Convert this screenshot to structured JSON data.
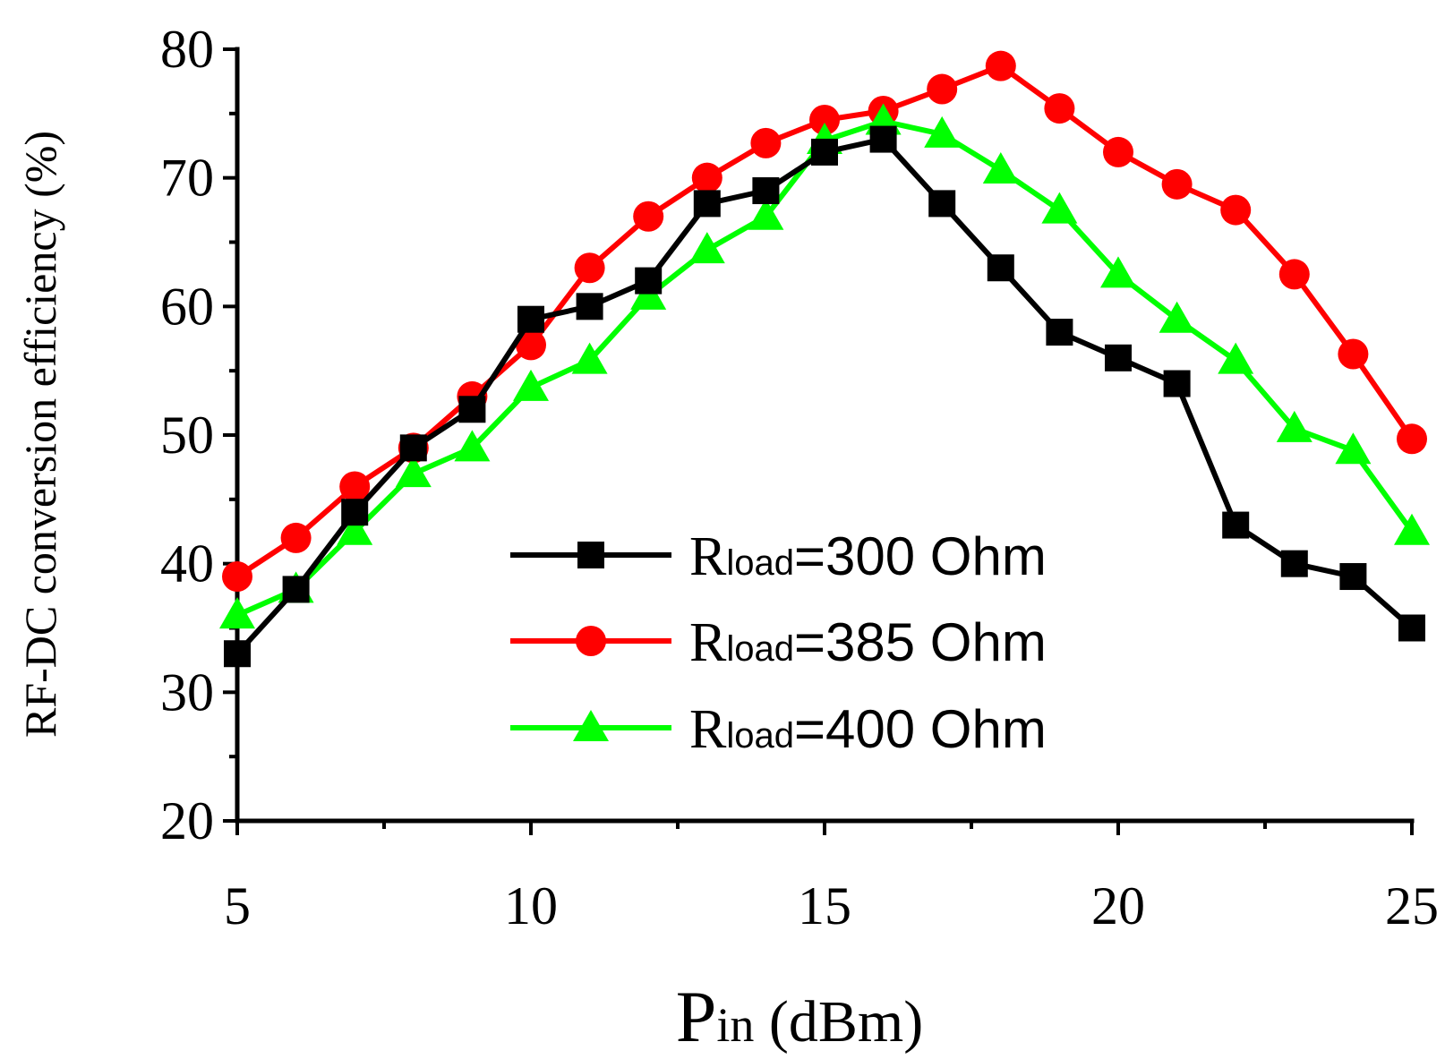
{
  "chart_data": {
    "type": "line",
    "title": "",
    "xlabel": {
      "main": "P",
      "sub": "in",
      "rest": " (dBm)"
    },
    "ylabel": "RF-DC conversion efficiency (%)",
    "xlim": [
      5,
      25
    ],
    "ylim": [
      20,
      80
    ],
    "xticks": [
      5,
      10,
      15,
      20,
      25
    ],
    "yticks": [
      20,
      30,
      40,
      50,
      60,
      70,
      80
    ],
    "grid": false,
    "legend_position": "center-bottom",
    "x": [
      5,
      6,
      7,
      8,
      9,
      10,
      11,
      12,
      13,
      14,
      15,
      16,
      17,
      18,
      19,
      20,
      21,
      22,
      23,
      24,
      25
    ],
    "series": [
      {
        "name": "Rload=300 Ohm",
        "label_main": "R",
        "label_sub": "load",
        "label_rest": "=300 Ohm",
        "color": "#000000",
        "marker": "square",
        "values": [
          33,
          38,
          44,
          49,
          52,
          59,
          60,
          62,
          68,
          69,
          72,
          73,
          68,
          63,
          58,
          56,
          54,
          43,
          40,
          39,
          35
        ]
      },
      {
        "name": "Rload=385 Ohm",
        "label_main": "R",
        "label_sub": "load",
        "label_rest": "=385 Ohm",
        "color": "#ff0000",
        "marker": "circle",
        "values": [
          39,
          42,
          46,
          49,
          53,
          57,
          63,
          67,
          70,
          72.7,
          74.5,
          75.2,
          76.9,
          78.7,
          75.4,
          72,
          69.5,
          67.5,
          62.5,
          56.3,
          49.7
        ]
      },
      {
        "name": "Rload=400 Ohm",
        "label_main": "R",
        "label_sub": "load",
        "label_rest": "=400 Ohm",
        "color": "#00ff00",
        "marker": "triangle",
        "values": [
          36,
          38,
          42.5,
          47,
          49,
          53.7,
          55.8,
          60.8,
          64.4,
          67,
          72.9,
          74.4,
          73.4,
          70.6,
          67.5,
          62.5,
          59,
          55.8,
          50.5,
          48.8,
          42.5
        ]
      }
    ]
  }
}
